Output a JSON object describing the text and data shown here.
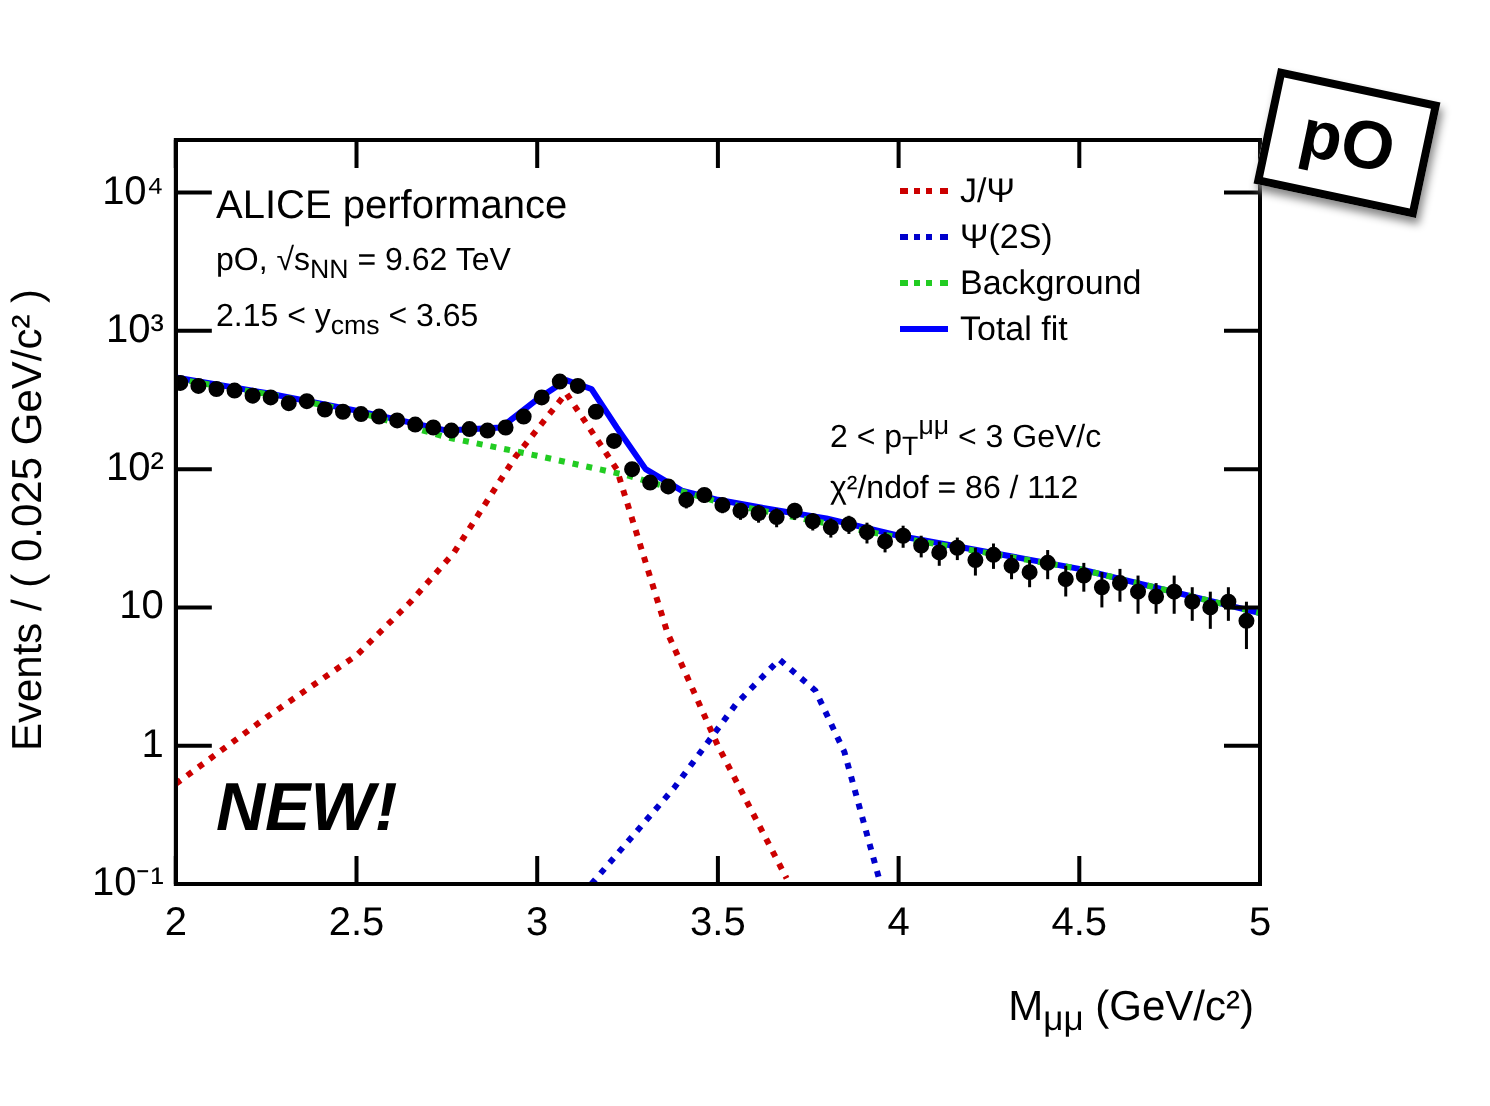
{
  "chart_data": {
    "type": "scatter",
    "xlabel": "M$_{μμ}$ (GeV/c²)",
    "ylabel": "Events / ( 0.025 GeV/c² )",
    "annotations": [
      "ALICE performance",
      "pO, √s$_{NN}$ = 9.62 TeV",
      "2.15 < y$_{cms}$ < 3.65",
      "2 < p$_{T}$$^{μμ}$ < 3 GeV/c",
      "χ²/ndof = 86 / 112",
      "NEW!",
      "pO"
    ],
    "xlim": [
      2,
      5
    ],
    "xticks": [
      2,
      2.5,
      3,
      3.5,
      4,
      4.5,
      5
    ],
    "ylim": [
      0.1,
      24000
    ],
    "yticks": [
      {
        "value": 0.1,
        "label": "10⁻¹"
      },
      1,
      10,
      {
        "value": 100,
        "label": "10²"
      },
      {
        "value": 1000,
        "label": "10³"
      },
      {
        "value": 10000,
        "label": "10⁴"
      }
    ],
    "log": "y",
    "grid": false,
    "legend": "top right",
    "series": [
      {
        "type": "scatter",
        "color": "#000000",
        "marker": "circle",
        "x": [
          2.0125,
          2.0625,
          2.1125,
          2.1625,
          2.2125,
          2.2625,
          2.3125,
          2.3625,
          2.4125,
          2.4625,
          2.5125,
          2.5625,
          2.6125,
          2.6625,
          2.7125,
          2.7625,
          2.8125,
          2.8625,
          2.9125,
          2.9625,
          3.0125,
          3.0625,
          3.1125,
          3.1625,
          3.2125,
          3.2625,
          3.3125,
          3.3625,
          3.4125,
          3.4625,
          3.5125,
          3.5625,
          3.6125,
          3.6625,
          3.7125,
          3.7625,
          3.8125,
          3.8625,
          3.9125,
          3.9625,
          4.0125,
          4.0625,
          4.1125,
          4.1625,
          4.2125,
          4.2625,
          4.3125,
          4.3625,
          4.4125,
          4.4625,
          4.5125,
          4.5625,
          4.6125,
          4.6625,
          4.7125,
          4.7625,
          4.8125,
          4.8625,
          4.9125,
          4.9625
        ],
        "values": [
          420,
          400,
          380,
          370,
          340,
          330,
          300,
          310,
          270,
          260,
          250,
          240,
          225,
          210,
          200,
          190,
          195,
          190,
          200,
          240,
          330,
          430,
          400,
          260,
          160,
          100,
          80,
          75,
          60,
          65,
          55,
          50,
          48,
          45,
          50,
          42,
          38,
          40,
          35,
          30,
          33,
          28,
          25,
          27,
          22,
          24,
          20,
          18,
          21,
          16,
          17,
          14,
          15,
          13,
          12,
          13,
          11,
          10,
          11,
          8
        ],
        "errors": [
          20,
          20,
          19,
          19,
          18,
          18,
          17,
          18,
          16,
          16,
          16,
          15,
          15,
          14,
          14,
          14,
          14,
          14,
          14,
          15,
          18,
          21,
          20,
          16,
          13,
          10,
          9,
          9,
          8,
          8,
          7,
          7,
          7,
          7,
          7,
          6,
          6,
          6,
          6,
          5,
          6,
          5,
          5,
          5,
          5,
          5,
          4,
          4,
          5,
          4,
          4,
          4,
          4,
          4,
          3,
          4,
          3,
          3,
          3,
          3
        ]
      },
      {
        "type": "line",
        "name": "J/Ψ",
        "color": "#cc0000",
        "line_style": "dotted",
        "marker": "none",
        "x": [
          2,
          2.25,
          2.5,
          2.65,
          2.77,
          2.94,
          3.08,
          3.22,
          3.36,
          3.5,
          3.69
        ],
        "values": [
          0.53,
          1.6,
          4.5,
          11,
          25,
          123,
          355,
          100,
          6.6,
          1.0,
          0.11
        ]
      },
      {
        "type": "line",
        "name": "Ψ(2S)",
        "color": "#0000cc",
        "line_style": "dotted",
        "marker": "none",
        "x": [
          3.15,
          3.38,
          3.55,
          3.67,
          3.77,
          3.85,
          3.95
        ],
        "values": [
          0.1,
          0.5,
          2,
          4.2,
          2.5,
          0.9,
          0.1
        ]
      },
      {
        "type": "line",
        "name": "Background",
        "color": "#22cc22",
        "line_style": "dotted",
        "marker": "none",
        "x": [
          2,
          2.25,
          2.5,
          2.75,
          3.0,
          3.25,
          3.5,
          3.75,
          4.0,
          4.5,
          5
        ],
        "values": [
          450,
          350,
          260,
          170,
          125,
          90,
          58,
          43,
          32,
          19,
          9.1
        ]
      },
      {
        "type": "line",
        "name": "Total fit",
        "color": "#0000ff",
        "line_style": "solid",
        "marker": "none",
        "x": [
          2,
          2.25,
          2.5,
          2.75,
          2.9,
          3.0,
          3.08,
          3.15,
          3.22,
          3.3,
          3.4,
          3.5,
          3.67,
          3.8,
          4.0,
          4.5,
          5
        ],
        "values": [
          460,
          355,
          265,
          190,
          200,
          320,
          440,
          380,
          200,
          100,
          70,
          60,
          50,
          44,
          33,
          19,
          9.1
        ]
      }
    ]
  }
}
